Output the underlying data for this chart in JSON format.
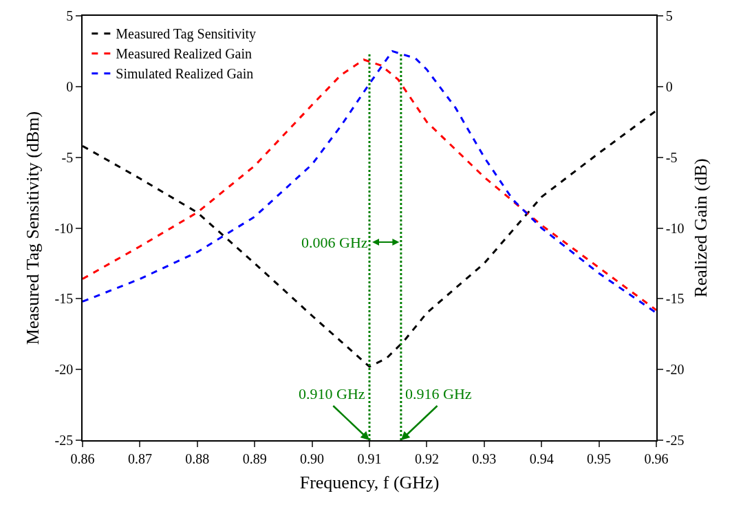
{
  "chart_data": {
    "type": "line",
    "xlabel": "Frequency, f (GHz)",
    "ylabel": "Measured Tag Sensitivity (dBm)",
    "y2label": "Realized Gain (dB)",
    "xlim": [
      0.86,
      0.96
    ],
    "xticks": [
      {
        "value": 0.86,
        "label": "0.86"
      },
      {
        "value": 0.87,
        "label": "0.87"
      },
      {
        "value": 0.88,
        "label": "0.88"
      },
      {
        "value": 0.89,
        "label": "0.89"
      },
      {
        "value": 0.9,
        "label": "0.90"
      },
      {
        "value": 0.91,
        "label": "0.91"
      },
      {
        "value": 0.92,
        "label": "0.92"
      },
      {
        "value": 0.93,
        "label": "0.93"
      },
      {
        "value": 0.94,
        "label": "0.94"
      },
      {
        "value": 0.95,
        "label": "0.95"
      },
      {
        "value": 0.96,
        "label": "0.96"
      }
    ],
    "ylim": [
      -25,
      5
    ],
    "yticks": [
      -25,
      -20,
      -15,
      -10,
      -5,
      0,
      5
    ],
    "y2lim": [
      -25,
      5
    ],
    "y2ticks": [
      -25,
      -20,
      -15,
      -10,
      -5,
      0,
      5
    ],
    "legend": "top left",
    "line_style": "dashed",
    "marker": "none",
    "series": [
      {
        "name": "Measured Tag Sensitivity",
        "color": "#000000",
        "x": [
          0.86,
          0.87,
          0.88,
          0.89,
          0.9,
          0.905,
          0.91,
          0.913,
          0.916,
          0.92,
          0.93,
          0.94,
          0.95,
          0.96
        ],
        "values": [
          -4.2,
          -6.5,
          -8.9,
          -12.5,
          -16.2,
          -18.0,
          -19.8,
          -19.2,
          -18.0,
          -16.0,
          -12.5,
          -7.8,
          -4.7,
          -1.7
        ]
      },
      {
        "name": "Measured Realized Gain",
        "color": "#ff0000",
        "axis": "y2",
        "x": [
          0.86,
          0.87,
          0.88,
          0.89,
          0.9,
          0.905,
          0.909,
          0.912,
          0.915,
          0.92,
          0.93,
          0.94,
          0.95,
          0.96
        ],
        "values": [
          -13.6,
          -11.3,
          -8.9,
          -5.6,
          -1.3,
          0.8,
          1.9,
          1.5,
          0.5,
          -2.5,
          -6.4,
          -9.8,
          -12.8,
          -15.8
        ]
      },
      {
        "name": "Simulated Realized Gain",
        "color": "#0000ff",
        "axis": "y2",
        "x": [
          0.86,
          0.87,
          0.88,
          0.89,
          0.9,
          0.905,
          0.91,
          0.914,
          0.918,
          0.92,
          0.925,
          0.93,
          0.935,
          0.94,
          0.95,
          0.96
        ],
        "values": [
          -15.2,
          -13.6,
          -11.7,
          -9.2,
          -5.5,
          -2.8,
          0.2,
          2.5,
          2.0,
          1.2,
          -1.5,
          -5.0,
          -8.0,
          -10.0,
          -13.2,
          -16.0
        ]
      }
    ],
    "ref_lines": [
      {
        "axis": "x",
        "value": 0.91,
        "color": "#008000",
        "line_style": "dotted"
      },
      {
        "axis": "x",
        "value": 0.9155,
        "color": "#008000",
        "line_style": "dotted"
      }
    ],
    "annotations": [
      {
        "text": "0.910 GHz",
        "x": 0.91,
        "y": -25
      },
      {
        "text": "0.916 GHz",
        "x": 0.9155,
        "y": -25
      },
      "0.006 GHz"
    ]
  }
}
